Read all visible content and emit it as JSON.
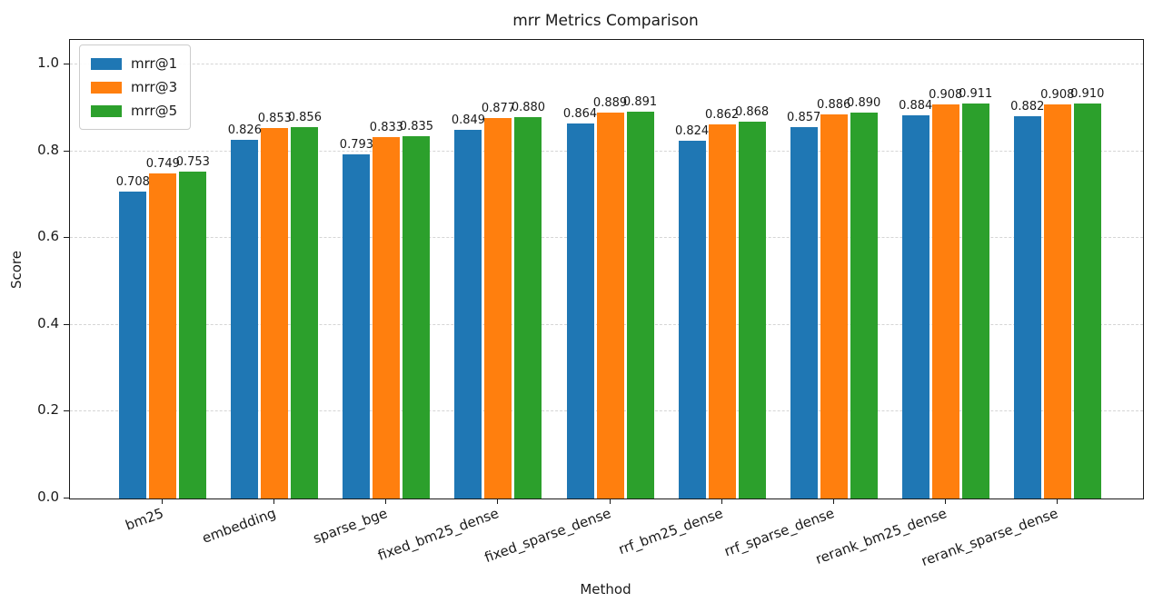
{
  "chart_data": {
    "type": "bar",
    "title": "mrr Metrics Comparison",
    "xlabel": "Method",
    "ylabel": "Score",
    "categories": [
      "bm25",
      "embedding",
      "sparse_bge",
      "fixed_bm25_dense",
      "fixed_sparse_dense",
      "rrf_bm25_dense",
      "rrf_sparse_dense",
      "rerank_bm25_dense",
      "rerank_sparse_dense"
    ],
    "series": [
      {
        "name": "mrr@1",
        "color": "#1f77b4",
        "values": [
          0.708,
          0.826,
          0.793,
          0.849,
          0.864,
          0.824,
          0.857,
          0.884,
          0.882
        ]
      },
      {
        "name": "mrr@3",
        "color": "#ff7f0e",
        "values": [
          0.749,
          0.853,
          0.833,
          0.877,
          0.889,
          0.862,
          0.886,
          0.908,
          0.908
        ]
      },
      {
        "name": "mrr@5",
        "color": "#2ca02c",
        "values": [
          0.753,
          0.856,
          0.835,
          0.88,
          0.891,
          0.868,
          0.89,
          0.911,
          0.91
        ]
      }
    ],
    "yticks": [
      0.0,
      0.2,
      0.4,
      0.6,
      0.8,
      1.0
    ],
    "ylim": [
      0,
      1.057
    ],
    "grid": "horizontal dashed",
    "legend_position": "upper left",
    "value_labels_decimals": 3,
    "ytick_decimals": 1
  }
}
